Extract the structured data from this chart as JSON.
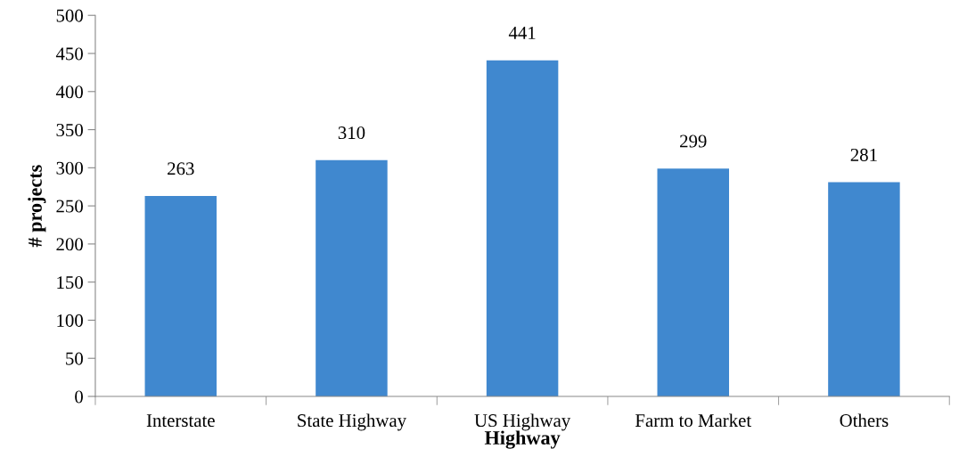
{
  "chart_data": {
    "type": "bar",
    "xlabel": "Highway",
    "ylabel": "# projects",
    "categories": [
      "Interstate",
      "State Highway",
      "US Highway",
      "Farm to Market",
      "Others"
    ],
    "values": [
      263,
      310,
      441,
      299,
      281
    ],
    "color": "#4088cf",
    "ylim": [
      0,
      500
    ],
    "yticks": [
      0,
      50,
      100,
      150,
      200,
      250,
      300,
      350,
      400,
      450,
      500
    ],
    "grid": false,
    "legend": false,
    "data_labels": true
  }
}
